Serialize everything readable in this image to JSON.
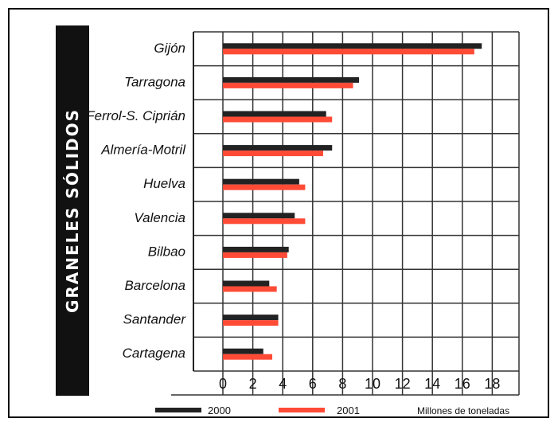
{
  "chart_data": {
    "type": "bar",
    "orientation": "horizontal",
    "title": "GRANELES SÓLIDOS",
    "xlabel": "Millones de toneladas",
    "ylabel": "",
    "xlim": [
      0,
      20
    ],
    "xticks": [
      0,
      2,
      4,
      6,
      8,
      10,
      12,
      14,
      16,
      18
    ],
    "grid": true,
    "legend_position": "bottom",
    "categories": [
      "Gijón",
      "Tarragona",
      "Ferrol-S. Ciprián",
      "Almería-Motril",
      "Huelva",
      "Valencia",
      "Bilbao",
      "Barcelona",
      "Santander",
      "Cartagena"
    ],
    "series": [
      {
        "name": "2000",
        "color": "#222222",
        "values": [
          17.3,
          9.1,
          6.9,
          7.3,
          5.1,
          4.8,
          4.4,
          3.1,
          3.7,
          2.7
        ]
      },
      {
        "name": "2001",
        "color": "#ff4b36",
        "values": [
          16.8,
          8.7,
          7.3,
          6.7,
          5.5,
          5.5,
          4.3,
          3.6,
          3.7,
          3.3
        ]
      }
    ]
  }
}
